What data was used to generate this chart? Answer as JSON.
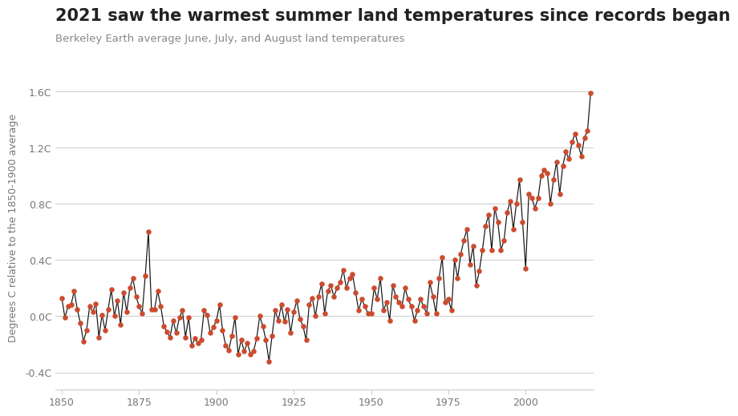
{
  "title": "2021 saw the warmest summer land temperatures since records began",
  "subtitle": "Berkeley Earth average June, July, and August land temperatures",
  "ylabel": "Degrees C relative to the 1850-1900 average",
  "ylim": [
    -0.52,
    1.78
  ],
  "yticks": [
    -0.4,
    0.0,
    0.4,
    0.8,
    1.2,
    1.6
  ],
  "ytick_labels": [
    "-0.4C",
    "0.0C",
    "0.4C",
    "0.8C",
    "1.2C",
    "1.6C"
  ],
  "xlim": [
    1848,
    2022
  ],
  "xticks": [
    1850,
    1875,
    1900,
    1925,
    1950,
    1975,
    2000
  ],
  "background_color": "#ffffff",
  "line_color": "#111111",
  "dot_color": "#cc4b2e",
  "title_fontsize": 15,
  "subtitle_fontsize": 9.5,
  "ylabel_fontsize": 9,
  "years": [
    1850,
    1851,
    1852,
    1853,
    1854,
    1855,
    1856,
    1857,
    1858,
    1859,
    1860,
    1861,
    1862,
    1863,
    1864,
    1865,
    1866,
    1867,
    1868,
    1869,
    1870,
    1871,
    1872,
    1873,
    1874,
    1875,
    1876,
    1877,
    1878,
    1879,
    1880,
    1881,
    1882,
    1883,
    1884,
    1885,
    1886,
    1887,
    1888,
    1889,
    1890,
    1891,
    1892,
    1893,
    1894,
    1895,
    1896,
    1897,
    1898,
    1899,
    1900,
    1901,
    1902,
    1903,
    1904,
    1905,
    1906,
    1907,
    1908,
    1909,
    1910,
    1911,
    1912,
    1913,
    1914,
    1915,
    1916,
    1917,
    1918,
    1919,
    1920,
    1921,
    1922,
    1923,
    1924,
    1925,
    1926,
    1927,
    1928,
    1929,
    1930,
    1931,
    1932,
    1933,
    1934,
    1935,
    1936,
    1937,
    1938,
    1939,
    1940,
    1941,
    1942,
    1943,
    1944,
    1945,
    1946,
    1947,
    1948,
    1949,
    1950,
    1951,
    1952,
    1953,
    1954,
    1955,
    1956,
    1957,
    1958,
    1959,
    1960,
    1961,
    1962,
    1963,
    1964,
    1965,
    1966,
    1967,
    1968,
    1969,
    1970,
    1971,
    1972,
    1973,
    1974,
    1975,
    1976,
    1977,
    1978,
    1979,
    1980,
    1981,
    1982,
    1983,
    1984,
    1985,
    1986,
    1987,
    1988,
    1989,
    1990,
    1991,
    1992,
    1993,
    1994,
    1995,
    1996,
    1997,
    1998,
    1999,
    2000,
    2001,
    2002,
    2003,
    2004,
    2005,
    2006,
    2007,
    2008,
    2009,
    2010,
    2011,
    2012,
    2013,
    2014,
    2015,
    2016,
    2017,
    2018,
    2019,
    2020,
    2021
  ],
  "anomalies": [
    0.13,
    -0.01,
    0.07,
    0.08,
    0.18,
    0.05,
    -0.05,
    -0.18,
    -0.1,
    0.07,
    0.03,
    0.09,
    -0.15,
    0.01,
    -0.1,
    0.05,
    0.19,
    0.0,
    0.11,
    -0.06,
    0.17,
    0.03,
    0.2,
    0.27,
    0.14,
    0.07,
    0.02,
    0.29,
    0.6,
    0.05,
    0.05,
    0.18,
    0.07,
    -0.07,
    -0.11,
    -0.15,
    -0.03,
    -0.12,
    -0.01,
    0.04,
    -0.15,
    -0.01,
    -0.21,
    -0.16,
    -0.19,
    -0.17,
    0.04,
    0.01,
    -0.12,
    -0.08,
    -0.03,
    0.08,
    -0.1,
    -0.21,
    -0.24,
    -0.14,
    -0.01,
    -0.27,
    -0.17,
    -0.25,
    -0.19,
    -0.27,
    -0.25,
    -0.16,
    0.0,
    -0.07,
    -0.17,
    -0.32,
    -0.14,
    0.04,
    -0.03,
    0.08,
    -0.04,
    0.05,
    -0.12,
    0.03,
    0.11,
    -0.02,
    -0.07,
    -0.17,
    0.08,
    0.13,
    0.0,
    0.14,
    0.23,
    0.02,
    0.18,
    0.22,
    0.14,
    0.2,
    0.24,
    0.33,
    0.2,
    0.27,
    0.3,
    0.17,
    0.04,
    0.12,
    0.07,
    0.02,
    0.02,
    0.2,
    0.12,
    0.27,
    0.04,
    0.1,
    -0.03,
    0.22,
    0.14,
    0.1,
    0.07,
    0.2,
    0.12,
    0.07,
    -0.03,
    0.04,
    0.12,
    0.07,
    0.02,
    0.24,
    0.14,
    0.02,
    0.27,
    0.42,
    0.1,
    0.12,
    0.04,
    0.4,
    0.27,
    0.44,
    0.54,
    0.62,
    0.37,
    0.5,
    0.22,
    0.32,
    0.47,
    0.64,
    0.72,
    0.47,
    0.77,
    0.67,
    0.47,
    0.54,
    0.74,
    0.82,
    0.62,
    0.8,
    0.97,
    0.67,
    0.34,
    0.87,
    0.84,
    0.77,
    0.84,
    1.0,
    1.04,
    1.02,
    0.8,
    0.97,
    1.1,
    0.87,
    1.07,
    1.17,
    1.12,
    1.24,
    1.3,
    1.22,
    1.14,
    1.27,
    1.32,
    1.59
  ]
}
